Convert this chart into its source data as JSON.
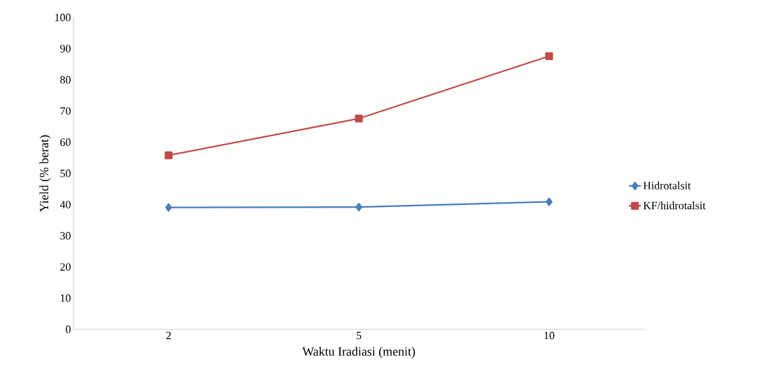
{
  "chart_data": {
    "type": "line",
    "xlabel": "Waktu Iradiasi (menit)",
    "ylabel": "Yield  (% berat)",
    "categories": [
      "2",
      "5",
      "10"
    ],
    "series": [
      {
        "name": "Hidrotalsit",
        "color": "#4a7ebb",
        "marker": "diamond",
        "values": [
          39.1,
          39.2,
          40.9
        ]
      },
      {
        "name": "KF/hidrotalsit",
        "color": "#be4b48",
        "marker": "square",
        "values": [
          55.8,
          67.6,
          87.6
        ]
      }
    ],
    "ylim": [
      0,
      100
    ],
    "yticks": [
      0,
      10,
      20,
      30,
      40,
      50,
      60,
      70,
      80,
      90,
      100
    ],
    "grid": false,
    "legend": "right",
    "line_style": "solid"
  }
}
